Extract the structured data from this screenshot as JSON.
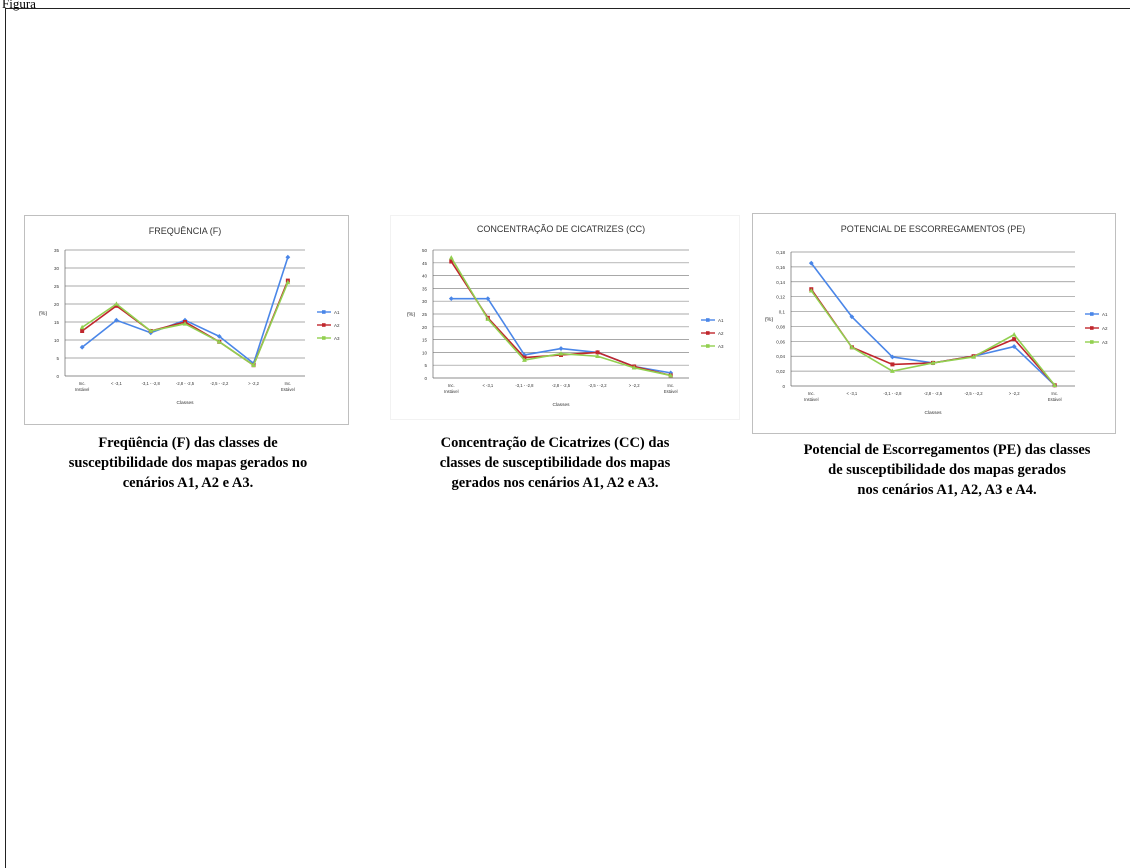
{
  "figure_label": "Figura",
  "captions": [
    [
      "Freqüência (F) das classes de",
      "susceptibilidade dos mapas gerados no",
      "cenários A1, A2 e A3."
    ],
    [
      "Concentração de Cicatrizes (CC) das",
      "classes de susceptibilidade dos mapas",
      "gerados nos cenários A1, A2 e A3."
    ],
    [
      "Potencial de Escorregamentos (PE) das classes",
      "de susceptibilidade dos mapas gerados",
      "nos cenários A1, A2, A3 e A4."
    ]
  ],
  "colors": {
    "A1": "#4a86e8",
    "A2": "#c0272d",
    "A3": "#92d050"
  },
  "chart_data": [
    {
      "type": "line",
      "title": "FREQUÊNCIA (F)",
      "xlabel": "Classes",
      "ylabel": "(%)",
      "categories": [
        "Inc. Instável",
        "< -3,1",
        "-3,1 - -2,8",
        "-2,8 - -2,5",
        "-2,5 - -2,2",
        "> -2,2",
        "Inc. Estável"
      ],
      "ylim": [
        0,
        35
      ],
      "yticks": [
        "0",
        "5",
        "10",
        "15",
        "20",
        "25",
        "30",
        "35"
      ],
      "grid": true,
      "legend": "right",
      "series": [
        {
          "name": "A1",
          "values": [
            8,
            15.5,
            12,
            15.5,
            11,
            3.5,
            33
          ],
          "marker": "diamond"
        },
        {
          "name": "A2",
          "values": [
            12.5,
            19.5,
            12.5,
            15,
            9.5,
            3,
            26.5
          ],
          "marker": "square"
        },
        {
          "name": "A3",
          "values": [
            13.5,
            20,
            12.5,
            14.5,
            9.5,
            3,
            26
          ],
          "marker": "triangle"
        }
      ]
    },
    {
      "type": "line",
      "title": "CONCENTRAÇÃO DE CICATRIZES (CC)",
      "xlabel": "Classes",
      "ylabel": "(%)",
      "categories": [
        "Inc. Instável",
        "< -3,1",
        "-3,1 - -2,8",
        "-2,8 - -2,5",
        "-2,5 - -2,2",
        "> -2,2",
        "Inc. Estável"
      ],
      "ylim": [
        0,
        50
      ],
      "yticks": [
        "0",
        "5",
        "10",
        "15",
        "20",
        "25",
        "30",
        "35",
        "40",
        "45",
        "50"
      ],
      "grid": true,
      "legend": "right",
      "series": [
        {
          "name": "A1",
          "values": [
            31,
            31,
            9,
            11.5,
            10,
            4.5,
            2
          ],
          "marker": "diamond"
        },
        {
          "name": "A2",
          "values": [
            45.5,
            23.5,
            8,
            9,
            10,
            4.5,
            1
          ],
          "marker": "square"
        },
        {
          "name": "A3",
          "values": [
            47,
            23,
            7,
            9.5,
            8.5,
            4,
            1
          ],
          "marker": "triangle"
        }
      ]
    },
    {
      "type": "line",
      "title": "POTENCIAL DE ESCORREGAMENTOS (PE)",
      "xlabel": "Classes",
      "ylabel": "(%)",
      "categories": [
        "Inc. Instável",
        "< -3,1",
        "-3,1 - -2,8",
        "-2,8 - -2,5",
        "-2,5 - -2,2",
        "> -2,2",
        "Inc. Estável"
      ],
      "ylim": [
        0,
        0.18
      ],
      "yticks": [
        "0",
        "0,02",
        "0,04",
        "0,06",
        "0,08",
        "0,1",
        "0,12",
        "0,14",
        "0,16",
        "0,18"
      ],
      "grid": true,
      "legend": "right",
      "series": [
        {
          "name": "A1",
          "values": [
            0.165,
            0.093,
            0.039,
            0.031,
            0.04,
            0.053,
            0.001
          ],
          "marker": "diamond"
        },
        {
          "name": "A2",
          "values": [
            0.13,
            0.052,
            0.029,
            0.031,
            0.04,
            0.063,
            0.001
          ],
          "marker": "square"
        },
        {
          "name": "A3",
          "values": [
            0.128,
            0.052,
            0.02,
            0.031,
            0.039,
            0.069,
            0.001
          ],
          "marker": "triangle"
        }
      ]
    }
  ]
}
